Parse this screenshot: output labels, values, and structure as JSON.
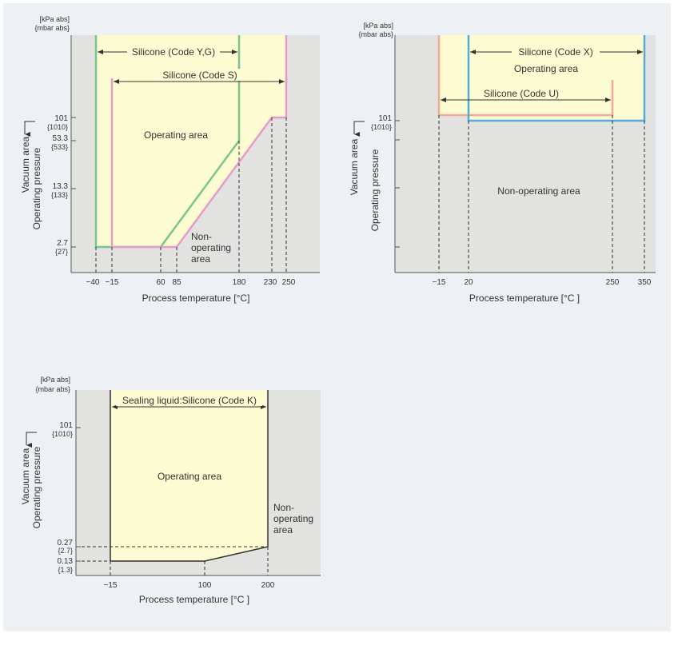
{
  "charts": [
    {
      "y_unit_kpa": "[kPa  abs]",
      "y_unit_mbar": "{mbar  abs}",
      "xlabel": "Process temperature [°C]",
      "ylabel_vacuum": "Vacuum area",
      "ylabel_pressure": "Operating  pressure",
      "operating_label": "Operating area",
      "non_operating_lines": [
        "Non-",
        "operating",
        "area"
      ],
      "ranges": [
        {
          "label": "Silicone (Code Y,G)"
        },
        {
          "label": "Silicone (Code S)"
        }
      ],
      "yticks": [
        {
          "kpa": "101",
          "mbar": "{1010}"
        },
        {
          "kpa": "53.3",
          "mbar": "{533}"
        },
        {
          "kpa": "13.3",
          "mbar": "{133}"
        },
        {
          "kpa": "2.7",
          "mbar": "{27}"
        }
      ],
      "xticks": [
        "−40",
        "−15",
        "60",
        "85",
        "180",
        "230",
        "250"
      ],
      "colors": {
        "code_yg": "#76c68e",
        "code_s": "#e79bc8",
        "operating_fill": "#fdfbd2",
        "non_operating_fill": "#e2e2e0"
      }
    },
    {
      "y_unit_kpa": "[kPa  abs]",
      "y_unit_mbar": "{mbar  abs}",
      "xlabel": "Process temperature [°C ]",
      "ylabel_vacuum": "Vacuum area",
      "ylabel_pressure": "Operating  pressure",
      "operating_label": "Operating area",
      "non_operating_label": "Non-operating area",
      "ranges": [
        {
          "label": "Silicone (Code X)"
        },
        {
          "label": "Silicone (Code U)"
        }
      ],
      "yticks": [
        {
          "kpa": "101",
          "mbar": "{1010}"
        }
      ],
      "xticks": [
        "−15",
        "20",
        "250",
        "350"
      ],
      "colors": {
        "code_x": "#57a9d9",
        "code_u": "#f2a999",
        "operating_fill": "#fdfbd2",
        "non_operating_fill": "#e2e2e0"
      }
    },
    {
      "y_unit_kpa": "[kPa  abs]",
      "y_unit_mbar": "{mbar  abs}",
      "xlabel": "Process temperature [°C ]",
      "ylabel_vacuum": "Vacuum area",
      "ylabel_pressure": "Operating  pressure",
      "operating_label": "Operating area",
      "non_operating_lines": [
        "Non-",
        "operating",
        "area"
      ],
      "ranges": [
        {
          "label": "Sealing liquid:Silicone (Code K)"
        }
      ],
      "yticks": [
        {
          "kpa": "101",
          "mbar": "{1010}"
        },
        {
          "kpa": "0.27",
          "mbar": "{2.7}"
        },
        {
          "kpa": "0.13",
          "mbar": "{1.3}"
        }
      ],
      "xticks": [
        "−15",
        "100",
        "200"
      ],
      "colors": {
        "code_k": "#333333",
        "operating_fill": "#fdfbd2",
        "non_operating_fill": "#e2e2e0"
      }
    }
  ],
  "chart_data": [
    {
      "type": "area",
      "x_unit": "°C",
      "y_unit": "kPa abs",
      "series": [
        {
          "name": "Silicone (Code Y,G)",
          "x": [
            -40,
            -40,
            60,
            180,
            180
          ],
          "y": [
            101,
            2.7,
            2.7,
            53.3,
            101
          ]
        },
        {
          "name": "Silicone (Code S)",
          "x": [
            -15,
            -15,
            85,
            230,
            250,
            250
          ],
          "y": [
            101,
            2.7,
            2.7,
            101,
            101,
            101
          ]
        }
      ],
      "xticks": [
        -40,
        -15,
        60,
        85,
        180,
        230,
        250
      ],
      "yticks_kpa": [
        2.7,
        13.3,
        53.3,
        101
      ]
    },
    {
      "type": "area",
      "x_unit": "°C",
      "y_unit": "kPa abs",
      "series": [
        {
          "name": "Silicone (Code X)",
          "x": [
            20,
            20,
            350,
            350
          ],
          "y": [
            101,
            101,
            101,
            101
          ]
        },
        {
          "name": "Silicone (Code U)",
          "x": [
            -15,
            -15,
            250,
            250
          ],
          "y": [
            101,
            101,
            101,
            101
          ]
        }
      ],
      "xticks": [
        -15,
        20,
        250,
        350
      ],
      "yticks_kpa": [
        101
      ]
    },
    {
      "type": "area",
      "x_unit": "°C",
      "y_unit": "kPa abs",
      "series": [
        {
          "name": "Sealing liquid:Silicone (Code K)",
          "x": [
            -15,
            -15,
            100,
            200,
            200
          ],
          "y": [
            101,
            0.13,
            0.13,
            0.27,
            101
          ]
        }
      ],
      "xticks": [
        -15,
        100,
        200
      ],
      "yticks_kpa": [
        0.13,
        0.27,
        101
      ]
    }
  ]
}
